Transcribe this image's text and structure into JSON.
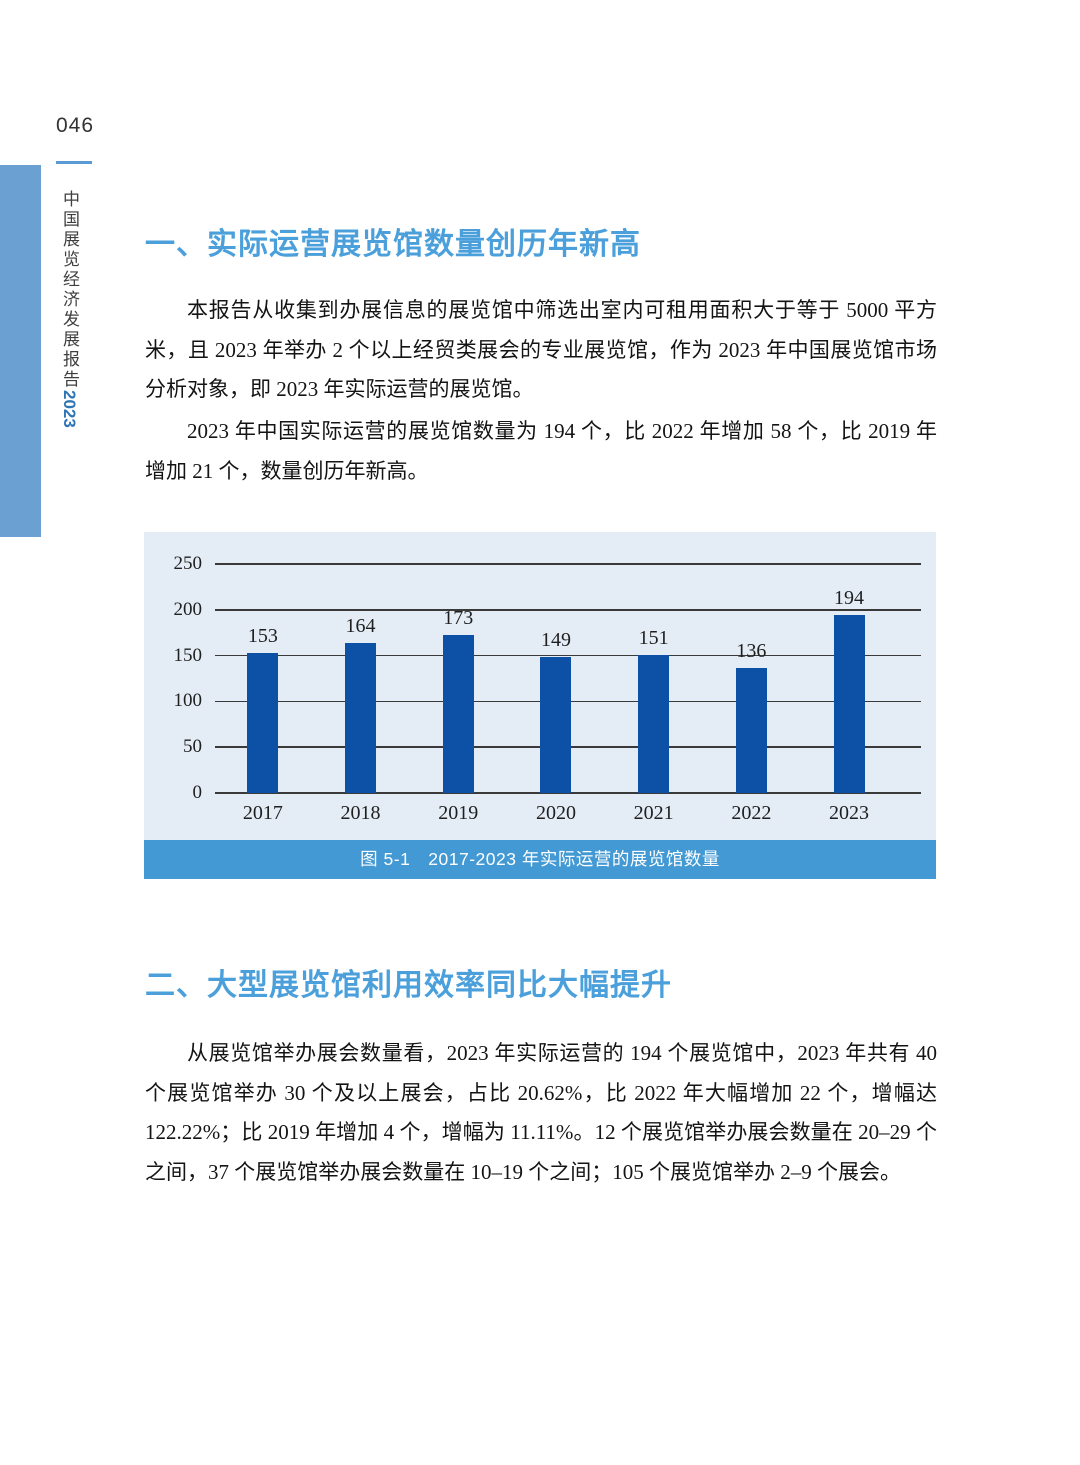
{
  "page": {
    "number": "046",
    "sidebar_title_cn": "中国展览经济发展报告",
    "sidebar_title_year": "2023"
  },
  "section1": {
    "heading": "一、实际运营展览馆数量创历年新高",
    "paragraph1": "本报告从收集到办展信息的展览馆中筛选出室内可租用面积大于等于 5000 平方米，且 2023 年举办 2 个以上经贸类展会的专业展览馆，作为 2023 年中国展览馆市场分析对象，即 2023 年实际运营的展览馆。",
    "paragraph2": "2023 年中国实际运营的展览馆数量为 194 个，比 2022 年增加 58 个，比 2019 年增加 21 个，数量创历年新高。"
  },
  "chart": {
    "caption": "图 5-1　2017-2023 年实际运营的展览馆数量"
  },
  "chart_data": {
    "type": "bar",
    "categories": [
      "2017",
      "2018",
      "2019",
      "2020",
      "2021",
      "2022",
      "2023"
    ],
    "values": [
      153,
      164,
      173,
      149,
      151,
      136,
      194
    ],
    "title": "图 5-1 2017-2023 年实际运营的展览馆数量",
    "xlabel": "",
    "ylabel": "",
    "ylim": [
      0,
      250
    ],
    "ytick_step": 50,
    "grid": true,
    "legend": "none",
    "bar_color": "#0C51A5",
    "panel_background": "#E4EDF6",
    "gridline_color": "#3a3a3a"
  },
  "section2": {
    "heading": "二、大型展览馆利用效率同比大幅提升",
    "paragraph1": "从展览馆举办展会数量看，2023 年实际运营的 194 个展览馆中，2023 年共有 40 个展览馆举办 30 个及以上展会，占比 20.62%，比 2022 年大幅增加 22 个，增幅达 122.22%；比 2019 年增加 4 个，增幅为 11.11%。12 个展览馆举办展会数量在 20–29 个之间，37 个展览馆举办展会数量在 10–19 个之间；105 个展览馆举办 2–9 个展会。"
  },
  "colors": {
    "heading_blue": "#4BA0DB",
    "caption_bar_blue": "#4299D3",
    "sidebar_rect_blue": "#6BA0D2",
    "rule_blue": "#5B9BD5",
    "sidebar_year_blue": "#2E75B6",
    "body_text": "#141414"
  }
}
